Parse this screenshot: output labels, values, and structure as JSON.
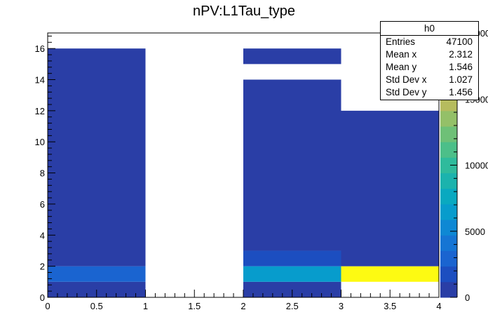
{
  "chart_data": {
    "type": "heatmap",
    "title": "nPV:L1Tau_type",
    "xlabel": "",
    "ylabel": "",
    "xlim": [
      0,
      4
    ],
    "ylim": [
      0,
      17
    ],
    "zlim": [
      0,
      20000
    ],
    "x_tick_labels": [
      "0",
      "0.5",
      "1",
      "1.5",
      "2",
      "2.5",
      "3",
      "3.5",
      "4"
    ],
    "y_tick_labels": [
      "0",
      "2",
      "4",
      "6",
      "8",
      "10",
      "12",
      "14",
      "16"
    ],
    "palette_tick_labels": [
      "0",
      "5000",
      "10000",
      "15000",
      "20000"
    ],
    "palette": [
      "#2a3ea6",
      "#1c4ec0",
      "#1a64d0",
      "#1575d4",
      "#0e88d4",
      "#079ccc",
      "#09a9c0",
      "#1bb3ad",
      "#2fbb9c",
      "#4cbf89",
      "#6ec077",
      "#94c068",
      "#b6bc5e",
      "#d3b957",
      "#f0c63c",
      "#f8e01e",
      "#fdfa12"
    ],
    "cells_note": "cells listed as [x_low, x_high, y_low, y_high, count]",
    "cells": [
      [
        0,
        1,
        0,
        1,
        200
      ],
      [
        0,
        1,
        1,
        2,
        2500
      ],
      [
        0,
        1,
        2,
        16,
        100
      ],
      [
        2,
        3,
        0,
        1,
        200
      ],
      [
        2,
        3,
        1,
        2,
        6800
      ],
      [
        2,
        3,
        2,
        3,
        1500
      ],
      [
        2,
        3,
        3,
        14,
        100
      ],
      [
        2,
        3,
        15,
        16,
        100
      ],
      [
        3,
        4,
        1,
        2,
        20000
      ],
      [
        3,
        4,
        2,
        12,
        100
      ]
    ]
  },
  "stats": {
    "name": "h0",
    "rows": [
      {
        "label": "Entries",
        "value": "47100"
      },
      {
        "label": "Mean x",
        "value": "2.312"
      },
      {
        "label": "Mean y",
        "value": "1.546"
      },
      {
        "label": "Std Dev x",
        "value": "1.027"
      },
      {
        "label": "Std Dev y",
        "value": "1.456"
      }
    ]
  }
}
